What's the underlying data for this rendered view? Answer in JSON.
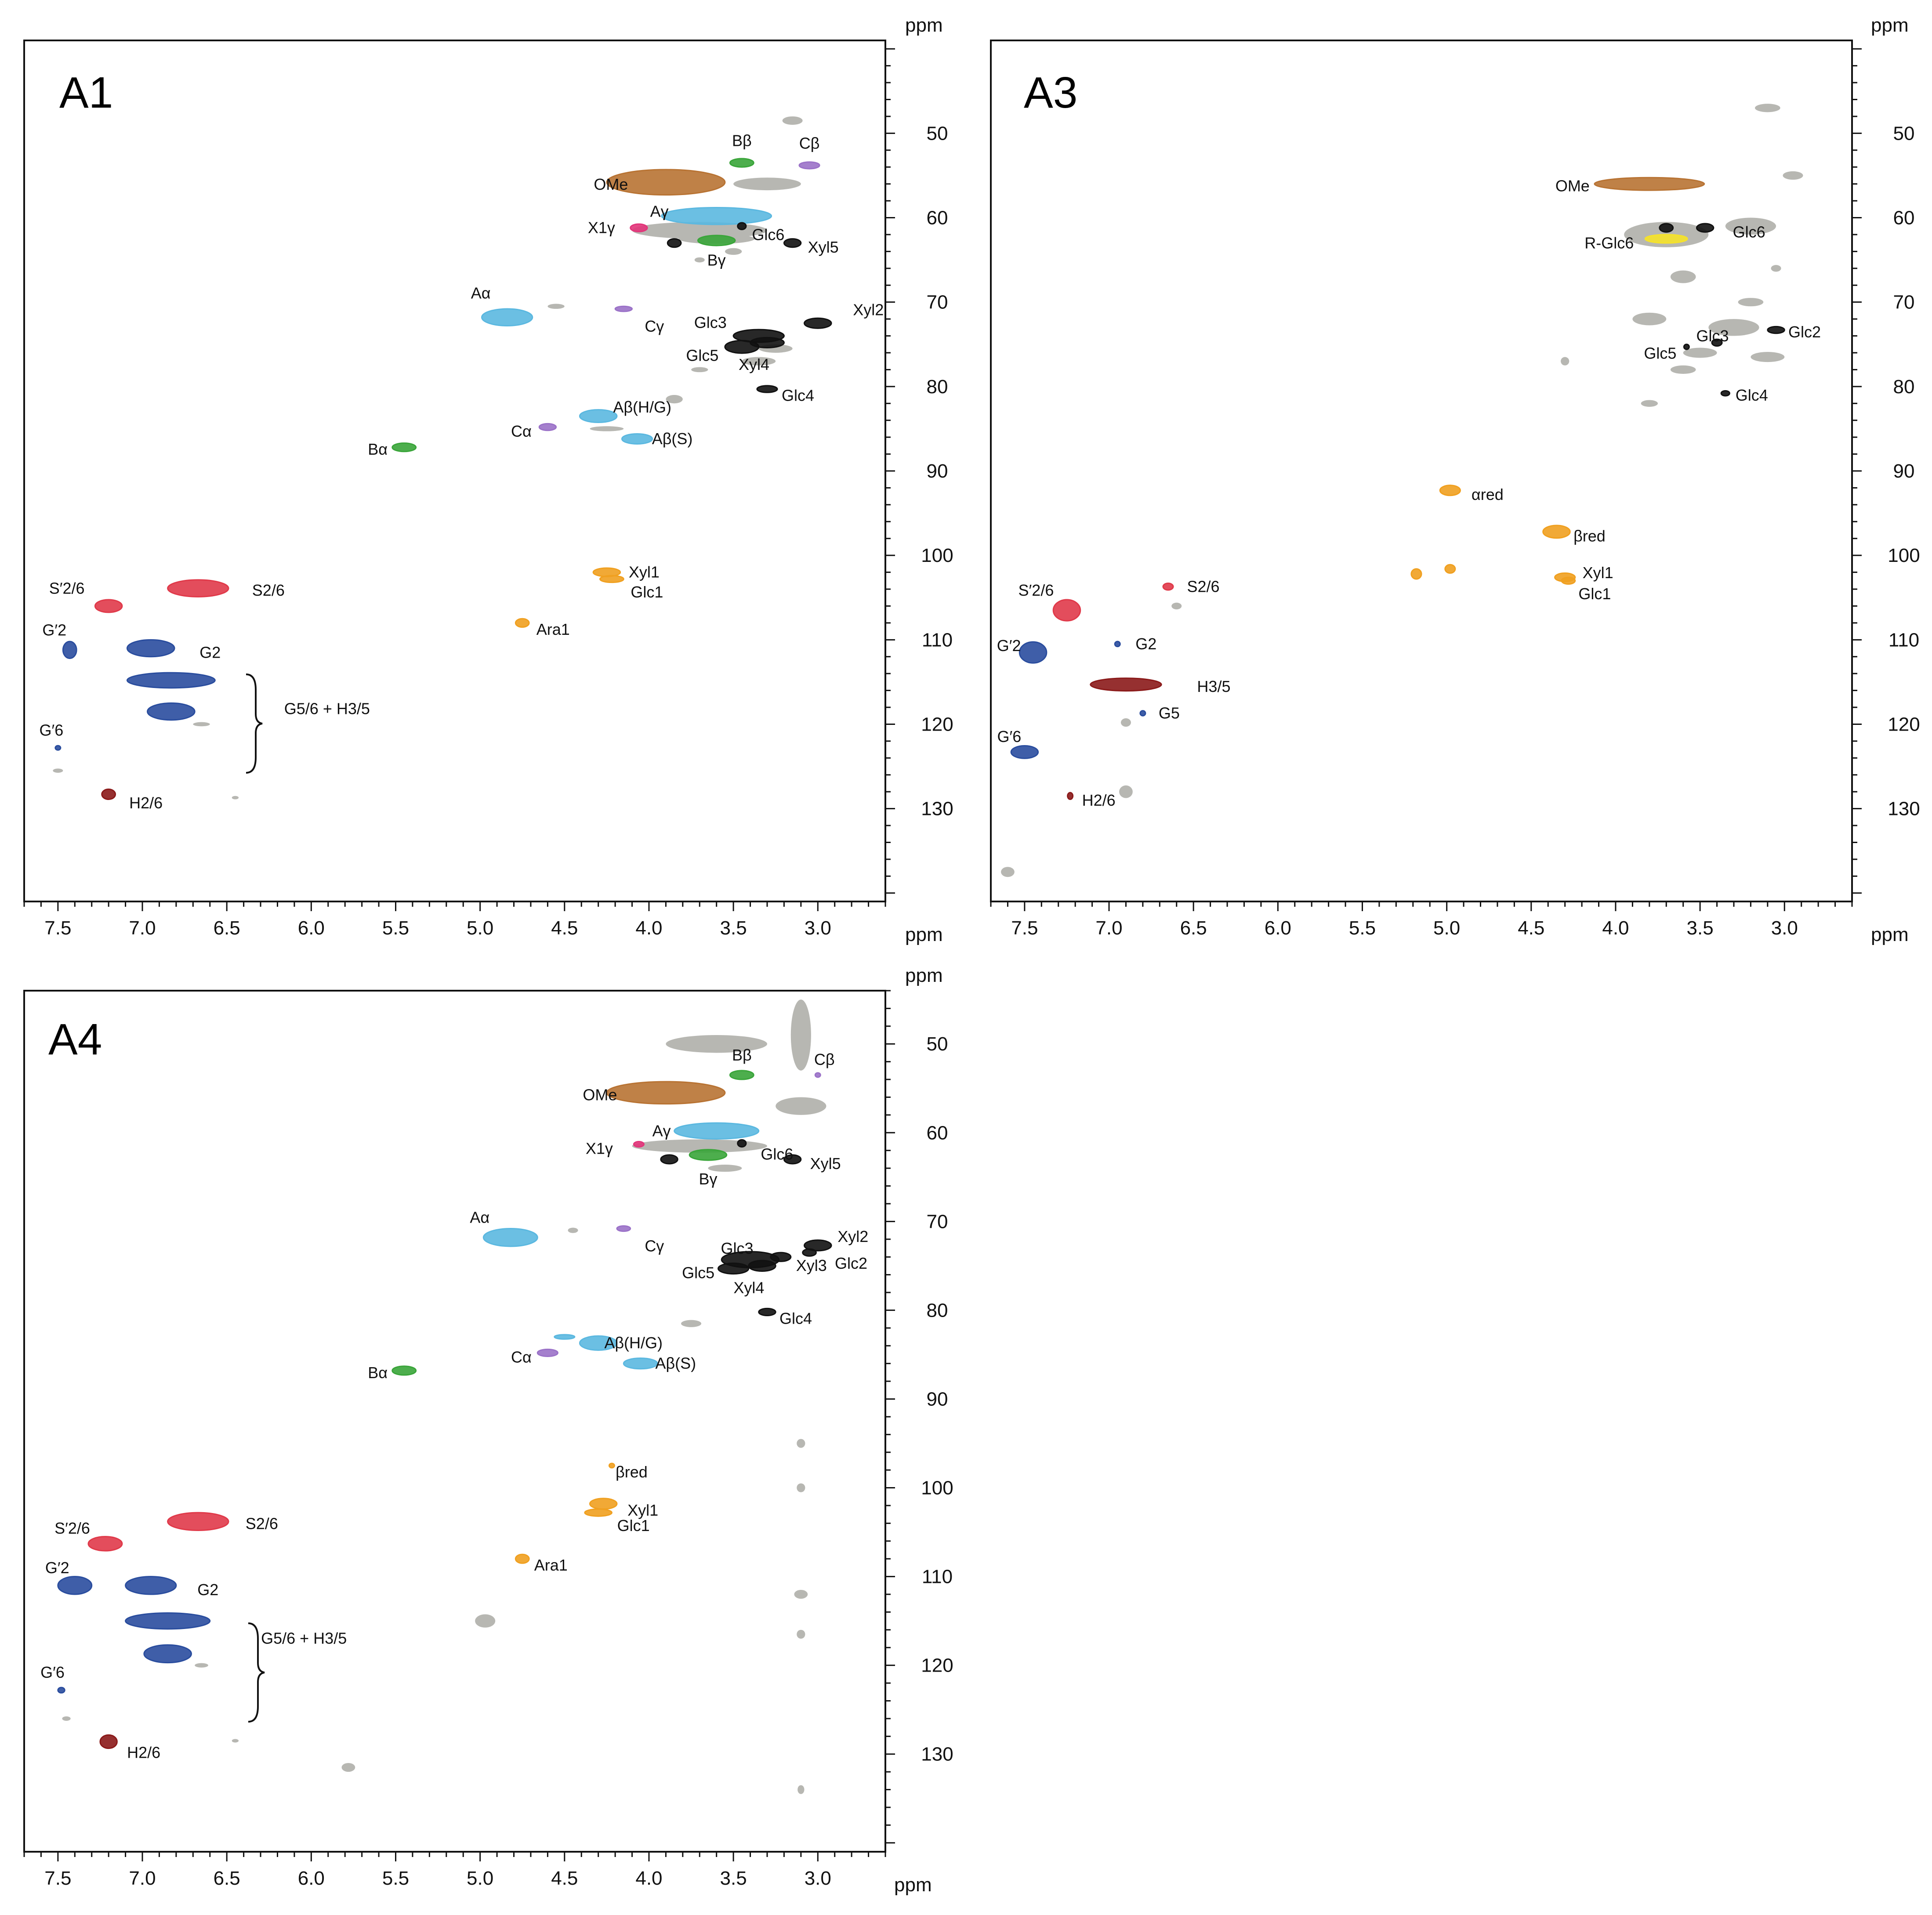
{
  "chart_data": [
    {
      "type": "scatter",
      "title": "A1",
      "xlabel": "ppm",
      "ylabel": "ppm",
      "xlim": [
        7.7,
        2.6
      ],
      "ylim": [
        39,
        141
      ],
      "xticks": [
        7.5,
        7.0,
        6.5,
        6.0,
        5.5,
        5.0,
        4.5,
        4.0,
        3.5,
        3.0
      ],
      "xtick_labels": [
        "7.5",
        "7.0",
        "6.5",
        "6.0",
        "5.5",
        "5.0",
        "4.5",
        "4.0",
        "3.5",
        "3.0"
      ],
      "yticks": [
        50,
        60,
        70,
        80,
        90,
        100,
        110,
        120,
        130
      ],
      "ytick_labels": [
        "50",
        "60",
        "70",
        "80",
        "90",
        "100",
        "110",
        "120",
        "130"
      ],
      "peaks": [
        {
          "label": "OMe",
          "x": 3.9,
          "y": 55.8,
          "w": 0.7,
          "h": 3.0,
          "color": "#b87333"
        },
        {
          "label": "Bβ",
          "x": 3.45,
          "y": 53.5,
          "w": 0.14,
          "h": 1.0,
          "color": "#3aa53a"
        },
        {
          "label": "Cβ",
          "x": 3.05,
          "y": 53.8,
          "w": 0.12,
          "h": 0.8,
          "color": "#9b72c8"
        },
        {
          "label": "Aγ",
          "x": 3.6,
          "y": 59.8,
          "w": 0.65,
          "h": 2.0,
          "color": "#5bb8e0"
        },
        {
          "label": "X1γ",
          "x": 4.06,
          "y": 61.2,
          "w": 0.1,
          "h": 0.9,
          "color": "#e2357a"
        },
        {
          "label": "Bγ",
          "x": 3.6,
          "y": 62.7,
          "w": 0.22,
          "h": 1.2,
          "color": "#3aa53a"
        },
        {
          "label": "Glc6",
          "x": 3.45,
          "y": 61.0,
          "w": 0.05,
          "h": 0.8,
          "color": "#111111"
        },
        {
          "label": "Xyl5",
          "x": 3.15,
          "y": 63.0,
          "w": 0.1,
          "h": 1.0,
          "color": "#111111"
        },
        {
          "label": "",
          "x": 3.85,
          "y": 63.0,
          "w": 0.08,
          "h": 1.0,
          "color": "#111111"
        },
        {
          "label": "Aα",
          "x": 4.84,
          "y": 71.8,
          "w": 0.3,
          "h": 2.0,
          "color": "#5bb8e0"
        },
        {
          "label": "Cγ",
          "x": 4.15,
          "y": 70.8,
          "w": 0.1,
          "h": 0.6,
          "color": "#9b72c8"
        },
        {
          "label": "Glc5",
          "x": 3.45,
          "y": 75.3,
          "w": 0.2,
          "h": 1.5,
          "color": "#111111"
        },
        {
          "label": "Glc3",
          "x": 3.35,
          "y": 74.0,
          "w": 0.3,
          "h": 1.5,
          "color": "#111111"
        },
        {
          "label": "Xyl4",
          "x": 3.3,
          "y": 74.8,
          "w": 0.2,
          "h": 1.2,
          "color": "#111111"
        },
        {
          "label": "Xyl2",
          "x": 3.0,
          "y": 72.5,
          "w": 0.16,
          "h": 1.2,
          "color": "#111111"
        },
        {
          "label": "Glc4",
          "x": 3.3,
          "y": 80.3,
          "w": 0.12,
          "h": 0.8,
          "color": "#111111"
        },
        {
          "label": "Aβ(H/G)",
          "x": 4.3,
          "y": 83.5,
          "w": 0.22,
          "h": 1.5,
          "color": "#5bb8e0"
        },
        {
          "label": "Aβ(S)",
          "x": 4.07,
          "y": 86.2,
          "w": 0.18,
          "h": 1.2,
          "color": "#5bb8e0"
        },
        {
          "label": "Cα",
          "x": 4.6,
          "y": 84.8,
          "w": 0.1,
          "h": 0.8,
          "color": "#9b72c8"
        },
        {
          "label": "Bα",
          "x": 5.45,
          "y": 87.2,
          "w": 0.14,
          "h": 1.0,
          "color": "#3aa53a"
        },
        {
          "label": "S2/6",
          "x": 6.67,
          "y": 103.9,
          "w": 0.36,
          "h": 2.0,
          "color": "#e03a4a"
        },
        {
          "label": "S′2/6",
          "x": 7.2,
          "y": 106.0,
          "w": 0.16,
          "h": 1.5,
          "color": "#e03a4a"
        },
        {
          "label": "Xyl1",
          "x": 4.25,
          "y": 102.0,
          "w": 0.16,
          "h": 1.0,
          "color": "#f0a020"
        },
        {
          "label": "Glc1",
          "x": 4.22,
          "y": 102.8,
          "w": 0.14,
          "h": 0.8,
          "color": "#f0a020"
        },
        {
          "label": "Ara1",
          "x": 4.75,
          "y": 108.0,
          "w": 0.08,
          "h": 1.0,
          "color": "#f0a020"
        },
        {
          "label": "G2",
          "x": 6.95,
          "y": 111.0,
          "w": 0.28,
          "h": 2.0,
          "color": "#2a4d9e"
        },
        {
          "label": "G′2",
          "x": 7.43,
          "y": 111.2,
          "w": 0.08,
          "h": 2.0,
          "color": "#2a4d9e"
        },
        {
          "label": "G5/6 + H3/5",
          "x": 6.83,
          "y": 114.8,
          "w": 0.52,
          "h": 1.8,
          "color": "#2a4d9e"
        },
        {
          "label": "",
          "x": 6.83,
          "y": 118.5,
          "w": 0.28,
          "h": 2.0,
          "color": "#2a4d9e"
        },
        {
          "label": "G′6",
          "x": 7.5,
          "y": 122.8,
          "w": 0.03,
          "h": 0.5,
          "color": "#2a4d9e"
        },
        {
          "label": "H2/6",
          "x": 7.2,
          "y": 128.3,
          "w": 0.08,
          "h": 1.2,
          "color": "#8b1a1a"
        }
      ]
    },
    {
      "type": "scatter",
      "title": "A3",
      "xlabel": "ppm",
      "ylabel": "ppm",
      "xlim": [
        7.7,
        2.6
      ],
      "ylim": [
        39,
        141
      ],
      "xticks": [
        7.5,
        7.0,
        6.5,
        6.0,
        5.5,
        5.0,
        4.5,
        4.0,
        3.5,
        3.0
      ],
      "xtick_labels": [
        "7.5",
        "7.0",
        "6.5",
        "6.0",
        "5.5",
        "5.0",
        "4.5",
        "4.0",
        "3.5",
        "3.0"
      ],
      "yticks": [
        50,
        60,
        70,
        80,
        90,
        100,
        110,
        120,
        130
      ],
      "ytick_labels": [
        "50",
        "60",
        "70",
        "80",
        "90",
        "100",
        "110",
        "120",
        "130"
      ],
      "peaks": [
        {
          "label": "OMe",
          "x": 3.8,
          "y": 56.0,
          "w": 0.65,
          "h": 1.5,
          "color": "#b87333"
        },
        {
          "label": "Glc6",
          "x": 3.47,
          "y": 61.2,
          "w": 0.1,
          "h": 1.0,
          "color": "#111111"
        },
        {
          "label": "",
          "x": 3.7,
          "y": 61.2,
          "w": 0.08,
          "h": 1.0,
          "color": "#111111"
        },
        {
          "label": "R-Glc6",
          "x": 3.7,
          "y": 62.5,
          "w": 0.25,
          "h": 1.0,
          "color": "#f5e22a"
        },
        {
          "label": "Glc2",
          "x": 3.05,
          "y": 73.3,
          "w": 0.1,
          "h": 0.8,
          "color": "#111111"
        },
        {
          "label": "Glc3",
          "x": 3.4,
          "y": 74.8,
          "w": 0.06,
          "h": 0.8,
          "color": "#111111"
        },
        {
          "label": "Glc5",
          "x": 3.58,
          "y": 75.3,
          "w": 0.02,
          "h": 0.6,
          "color": "#111111"
        },
        {
          "label": "Glc4",
          "x": 3.35,
          "y": 80.8,
          "w": 0.05,
          "h": 0.6,
          "color": "#111111"
        },
        {
          "label": "αred",
          "x": 4.98,
          "y": 92.3,
          "w": 0.12,
          "h": 1.2,
          "color": "#f0a020"
        },
        {
          "label": "βred",
          "x": 4.35,
          "y": 97.2,
          "w": 0.16,
          "h": 1.5,
          "color": "#f0a020"
        },
        {
          "label": "Xyl1",
          "x": 4.3,
          "y": 102.6,
          "w": 0.12,
          "h": 1.0,
          "color": "#f0a020"
        },
        {
          "label": "Glc1",
          "x": 4.28,
          "y": 103.0,
          "w": 0.08,
          "h": 0.8,
          "color": "#f0a020"
        },
        {
          "label": "",
          "x": 5.18,
          "y": 102.2,
          "w": 0.06,
          "h": 1.2,
          "color": "#f0a020"
        },
        {
          "label": "",
          "x": 4.98,
          "y": 101.6,
          "w": 0.06,
          "h": 1.0,
          "color": "#f0a020"
        },
        {
          "label": "S2/6",
          "x": 6.65,
          "y": 103.7,
          "w": 0.06,
          "h": 0.8,
          "color": "#e03a4a"
        },
        {
          "label": "S′2/6",
          "x": 7.25,
          "y": 106.5,
          "w": 0.16,
          "h": 2.5,
          "color": "#e03a4a"
        },
        {
          "label": "G2",
          "x": 6.95,
          "y": 110.5,
          "w": 0.03,
          "h": 0.6,
          "color": "#2a4d9e"
        },
        {
          "label": "G′2",
          "x": 7.45,
          "y": 111.5,
          "w": 0.16,
          "h": 2.5,
          "color": "#2a4d9e"
        },
        {
          "label": "H3/5",
          "x": 6.9,
          "y": 115.3,
          "w": 0.42,
          "h": 1.5,
          "color": "#8b1a1a"
        },
        {
          "label": "G5",
          "x": 6.8,
          "y": 118.7,
          "w": 0.03,
          "h": 0.6,
          "color": "#2a4d9e"
        },
        {
          "label": "G′6",
          "x": 7.5,
          "y": 123.3,
          "w": 0.16,
          "h": 1.5,
          "color": "#2a4d9e"
        },
        {
          "label": "H2/6",
          "x": 7.23,
          "y": 128.5,
          "w": 0.02,
          "h": 0.8,
          "color": "#8b1a1a"
        }
      ]
    },
    {
      "type": "scatter",
      "title": "A4",
      "xlabel": "ppm",
      "ylabel": "ppm",
      "xlim": [
        7.7,
        2.6
      ],
      "ylim": [
        44,
        141
      ],
      "xticks": [
        7.5,
        7.0,
        6.5,
        6.0,
        5.5,
        5.0,
        4.5,
        4.0,
        3.5,
        3.0
      ],
      "xtick_labels": [
        "7.5",
        "7.0",
        "6.5",
        "6.0",
        "5.5",
        "5.0",
        "4.5",
        "4.0",
        "3.5",
        "3.0"
      ],
      "yticks": [
        50,
        60,
        70,
        80,
        90,
        100,
        110,
        120,
        130
      ],
      "ytick_labels": [
        "50",
        "60",
        "70",
        "80",
        "90",
        "100",
        "110",
        "120",
        "130"
      ],
      "peaks": [
        {
          "label": "OMe",
          "x": 3.9,
          "y": 55.5,
          "w": 0.7,
          "h": 2.5,
          "color": "#b87333"
        },
        {
          "label": "Bβ",
          "x": 3.45,
          "y": 53.5,
          "w": 0.14,
          "h": 1.0,
          "color": "#3aa53a"
        },
        {
          "label": "Cβ",
          "x": 3.0,
          "y": 53.5,
          "w": 0.03,
          "h": 0.4,
          "color": "#9b72c8"
        },
        {
          "label": "Aγ",
          "x": 3.6,
          "y": 59.8,
          "w": 0.5,
          "h": 1.8,
          "color": "#5bb8e0"
        },
        {
          "label": "X1γ",
          "x": 4.06,
          "y": 61.3,
          "w": 0.06,
          "h": 0.6,
          "color": "#e2357a"
        },
        {
          "label": "Bγ",
          "x": 3.65,
          "y": 62.5,
          "w": 0.22,
          "h": 1.2,
          "color": "#3aa53a"
        },
        {
          "label": "Glc6",
          "x": 3.45,
          "y": 61.2,
          "w": 0.05,
          "h": 0.8,
          "color": "#111111"
        },
        {
          "label": "Xyl5",
          "x": 3.15,
          "y": 63.0,
          "w": 0.1,
          "h": 1.0,
          "color": "#111111"
        },
        {
          "label": "",
          "x": 3.88,
          "y": 63.0,
          "w": 0.1,
          "h": 1.0,
          "color": "#111111"
        },
        {
          "label": "Aα",
          "x": 4.82,
          "y": 71.8,
          "w": 0.32,
          "h": 2.0,
          "color": "#5bb8e0"
        },
        {
          "label": "Cγ",
          "x": 4.15,
          "y": 70.8,
          "w": 0.08,
          "h": 0.6,
          "color": "#9b72c8"
        },
        {
          "label": "Glc3",
          "x": 3.4,
          "y": 74.3,
          "w": 0.34,
          "h": 1.8,
          "color": "#111111"
        },
        {
          "label": "Glc5",
          "x": 3.5,
          "y": 75.3,
          "w": 0.18,
          "h": 1.2,
          "color": "#111111"
        },
        {
          "label": "Xyl4",
          "x": 3.33,
          "y": 75.0,
          "w": 0.16,
          "h": 1.2,
          "color": "#111111"
        },
        {
          "label": "Xyl3",
          "x": 3.22,
          "y": 74.0,
          "w": 0.12,
          "h": 1.0,
          "color": "#111111"
        },
        {
          "label": "Xyl2",
          "x": 3.0,
          "y": 72.7,
          "w": 0.16,
          "h": 1.2,
          "color": "#111111"
        },
        {
          "label": "Glc2",
          "x": 3.05,
          "y": 73.5,
          "w": 0.08,
          "h": 0.8,
          "color": "#111111"
        },
        {
          "label": "Glc4",
          "x": 3.3,
          "y": 80.2,
          "w": 0.1,
          "h": 0.8,
          "color": "#111111"
        },
        {
          "label": "Aβ(H/G)",
          "x": 4.3,
          "y": 83.7,
          "w": 0.22,
          "h": 1.6,
          "color": "#5bb8e0"
        },
        {
          "label": "Aβ(S)",
          "x": 4.05,
          "y": 86.0,
          "w": 0.2,
          "h": 1.2,
          "color": "#5bb8e0"
        },
        {
          "label": "",
          "x": 4.5,
          "y": 83.0,
          "w": 0.12,
          "h": 0.5,
          "color": "#5bb8e0"
        },
        {
          "label": "Cα",
          "x": 4.6,
          "y": 84.8,
          "w": 0.12,
          "h": 0.8,
          "color": "#9b72c8"
        },
        {
          "label": "Bα",
          "x": 5.45,
          "y": 86.8,
          "w": 0.14,
          "h": 1.0,
          "color": "#3aa53a"
        },
        {
          "label": "βred",
          "x": 4.22,
          "y": 97.5,
          "w": 0.02,
          "h": 0.4,
          "color": "#f0a020"
        },
        {
          "label": "S2/6",
          "x": 6.67,
          "y": 103.8,
          "w": 0.36,
          "h": 2.0,
          "color": "#e03a4a"
        },
        {
          "label": "S′2/6",
          "x": 7.22,
          "y": 106.3,
          "w": 0.2,
          "h": 1.6,
          "color": "#e03a4a"
        },
        {
          "label": "Xyl1",
          "x": 4.27,
          "y": 101.8,
          "w": 0.16,
          "h": 1.2,
          "color": "#f0a020"
        },
        {
          "label": "Glc1",
          "x": 4.3,
          "y": 102.8,
          "w": 0.16,
          "h": 0.8,
          "color": "#f0a020"
        },
        {
          "label": "Ara1",
          "x": 4.75,
          "y": 108.0,
          "w": 0.08,
          "h": 1.0,
          "color": "#f0a020"
        },
        {
          "label": "G2",
          "x": 6.95,
          "y": 111.0,
          "w": 0.3,
          "h": 2.0,
          "color": "#2a4d9e"
        },
        {
          "label": "G′2",
          "x": 7.4,
          "y": 111.0,
          "w": 0.2,
          "h": 2.0,
          "color": "#2a4d9e"
        },
        {
          "label": "G5/6 + H3/5",
          "x": 6.85,
          "y": 115.0,
          "w": 0.5,
          "h": 1.8,
          "color": "#2a4d9e"
        },
        {
          "label": "",
          "x": 6.85,
          "y": 118.7,
          "w": 0.28,
          "h": 2.0,
          "color": "#2a4d9e"
        },
        {
          "label": "G′6",
          "x": 7.48,
          "y": 122.8,
          "w": 0.04,
          "h": 0.6,
          "color": "#2a4d9e"
        },
        {
          "label": "H2/6",
          "x": 7.2,
          "y": 128.6,
          "w": 0.1,
          "h": 1.5,
          "color": "#8b1a1a"
        }
      ]
    }
  ],
  "colors": {
    "axis": "#111111",
    "background_peaks": "#b7b7b2",
    "lignin_S": "#e03a4a",
    "lignin_G": "#2a4d9e",
    "lignin_H": "#8b1a1a",
    "methoxyl": "#b87333",
    "beta_O_4": "#5bb8e0",
    "phenylcoumaran": "#3aa53a",
    "resinol": "#9b72c8",
    "cinnamyl_alcohol": "#e2357a",
    "anomeric": "#f0a020",
    "carbohydrate": "#111111",
    "reducing_glc6": "#f5e22a"
  }
}
